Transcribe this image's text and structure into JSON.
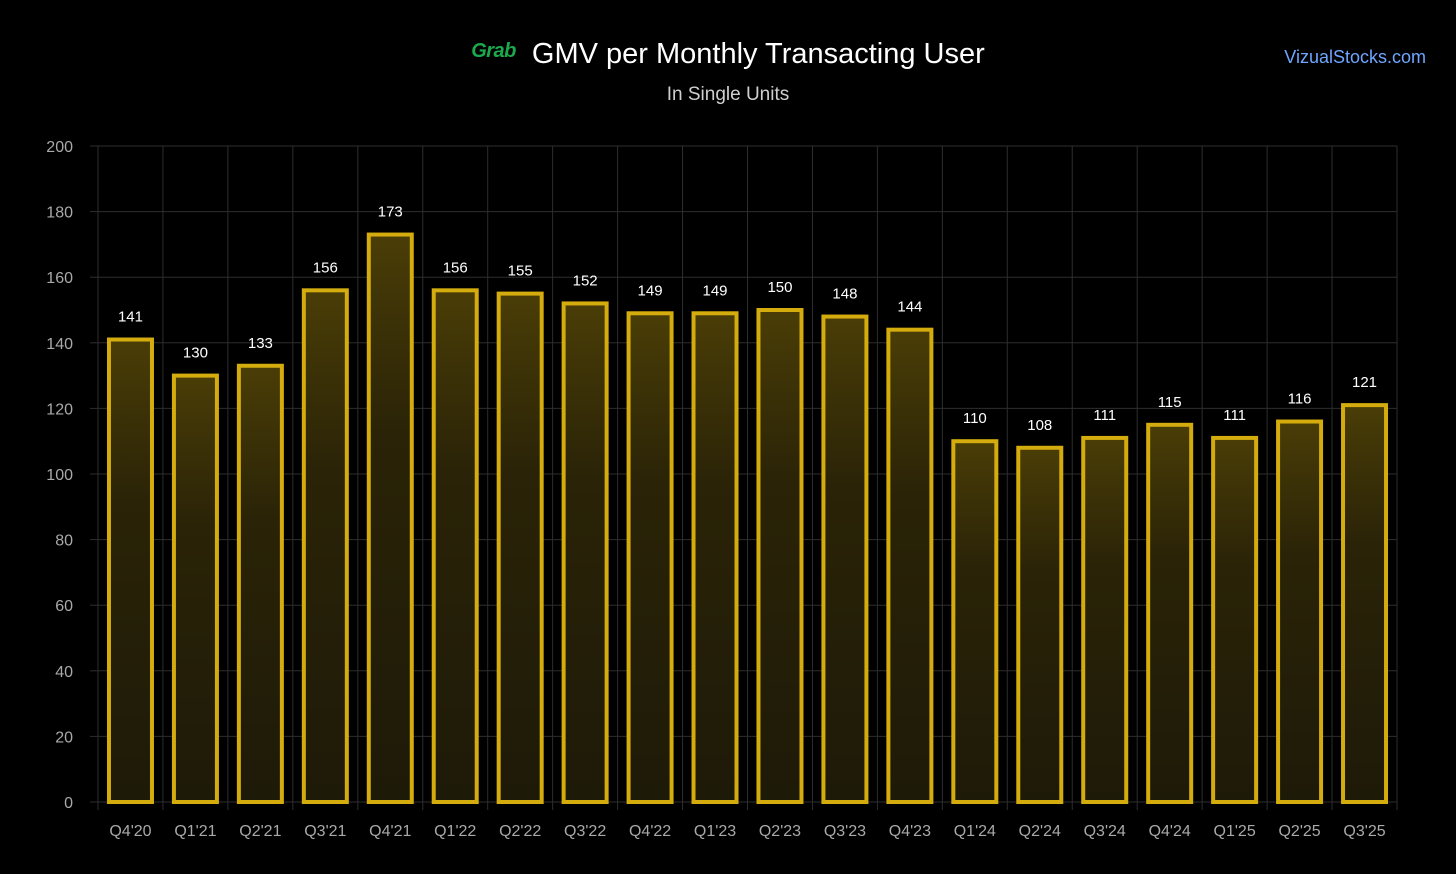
{
  "header": {
    "brand": "Grab",
    "title": "GMV per Monthly Transacting User",
    "subtitle": "In Single Units",
    "watermark": "VizualStocks.com"
  },
  "colors": {
    "background": "#000000",
    "bar_stroke": "#d4ac0d",
    "bar_fill": "#2a2307",
    "grid": "#2e2e2e",
    "tick_text": "#a9a9a9",
    "label_text": "#ffffff",
    "brand": "#1ba94c",
    "watermark": "#6ea6ff"
  },
  "chart_data": {
    "type": "bar",
    "title": "GMV per Monthly Transacting User",
    "subtitle": "In Single Units",
    "categories": [
      "Q4'20",
      "Q1'21",
      "Q2'21",
      "Q3'21",
      "Q4'21",
      "Q1'22",
      "Q2'22",
      "Q3'22",
      "Q4'22",
      "Q1'23",
      "Q2'23",
      "Q3'23",
      "Q4'23",
      "Q1'24",
      "Q2'24",
      "Q3'24",
      "Q4'24",
      "Q1'25",
      "Q2'25",
      "Q3'25"
    ],
    "values": [
      141,
      130,
      133,
      156,
      173,
      156,
      155,
      152,
      149,
      149,
      150,
      148,
      144,
      110,
      108,
      111,
      115,
      111,
      116,
      121
    ],
    "ylim": [
      0,
      200
    ],
    "yticks": [
      0,
      20,
      40,
      60,
      80,
      100,
      120,
      140,
      160,
      180,
      200
    ],
    "grid": true,
    "legend": "none",
    "data_labels": true
  }
}
